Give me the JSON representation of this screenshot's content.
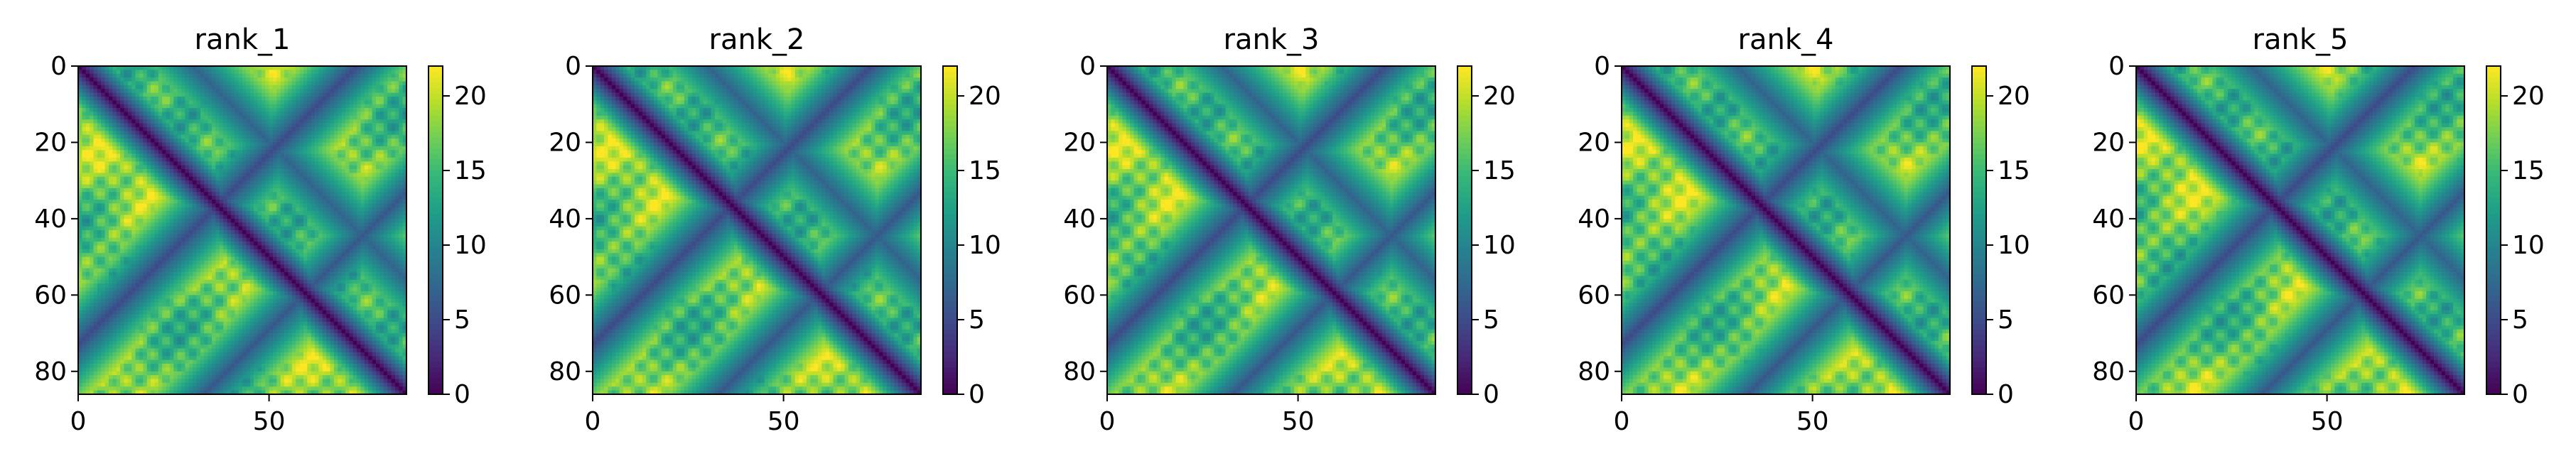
{
  "chart_data": [
    {
      "type": "heatmap",
      "title": "rank_1",
      "x_ticks": [
        "0",
        "50"
      ],
      "y_ticks": [
        "0",
        "20",
        "40",
        "60",
        "80"
      ],
      "xlim": [
        0,
        86
      ],
      "ylim": [
        86,
        0
      ],
      "n_residues": 86,
      "colorbar": {
        "ticks": [
          "0",
          "5",
          "10",
          "15",
          "20"
        ],
        "range": [
          0,
          22
        ]
      },
      "colormap": "viridis"
    },
    {
      "type": "heatmap",
      "title": "rank_2",
      "x_ticks": [
        "0",
        "50"
      ],
      "y_ticks": [
        "0",
        "20",
        "40",
        "60",
        "80"
      ],
      "xlim": [
        0,
        86
      ],
      "ylim": [
        86,
        0
      ],
      "n_residues": 86,
      "colorbar": {
        "ticks": [
          "0",
          "5",
          "10",
          "15",
          "20"
        ],
        "range": [
          0,
          22
        ]
      },
      "colormap": "viridis"
    },
    {
      "type": "heatmap",
      "title": "rank_3",
      "x_ticks": [
        "0",
        "50"
      ],
      "y_ticks": [
        "0",
        "20",
        "40",
        "60",
        "80"
      ],
      "xlim": [
        0,
        86
      ],
      "ylim": [
        86,
        0
      ],
      "n_residues": 86,
      "colorbar": {
        "ticks": [
          "0",
          "5",
          "10",
          "15",
          "20"
        ],
        "range": [
          0,
          22
        ]
      },
      "colormap": "viridis"
    },
    {
      "type": "heatmap",
      "title": "rank_4",
      "x_ticks": [
        "0",
        "50"
      ],
      "y_ticks": [
        "0",
        "20",
        "40",
        "60",
        "80"
      ],
      "xlim": [
        0,
        86
      ],
      "ylim": [
        86,
        0
      ],
      "n_residues": 86,
      "colorbar": {
        "ticks": [
          "0",
          "5",
          "10",
          "15",
          "20"
        ],
        "range": [
          0,
          22
        ]
      },
      "colormap": "viridis"
    },
    {
      "type": "heatmap",
      "title": "rank_5",
      "x_ticks": [
        "0",
        "50"
      ],
      "y_ticks": [
        "0",
        "20",
        "40",
        "60",
        "80"
      ],
      "xlim": [
        0,
        86
      ],
      "ylim": [
        86,
        0
      ],
      "n_residues": 86,
      "colorbar": {
        "ticks": [
          "0",
          "5",
          "10",
          "15",
          "20"
        ],
        "range": [
          0,
          22
        ]
      },
      "colormap": "viridis"
    }
  ]
}
